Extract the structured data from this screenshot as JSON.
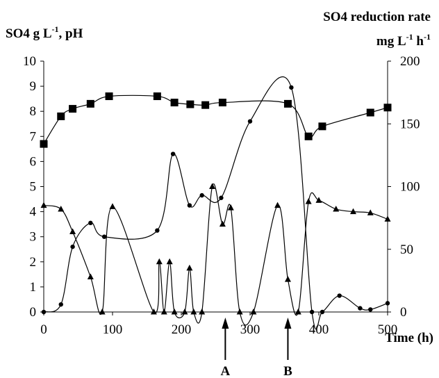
{
  "chart_data": {
    "type": "line",
    "title": "",
    "xlabel": "Time (h)",
    "ylabel_left": {
      "main": "SO4 g L",
      "sup": "-1",
      "tail": ", pH"
    },
    "ylabel_right": {
      "line1": "SO4 reduction rate",
      "line2_a": "mg L",
      "sup_a": "-1",
      "line2_b": " h",
      "sup_b": "-1"
    },
    "xlim": [
      0,
      500
    ],
    "ylim_left": [
      0,
      10
    ],
    "ylim_right": [
      0,
      200
    ],
    "x_ticks": [
      "0",
      "100",
      "200",
      "300",
      "400",
      "500"
    ],
    "y_left_ticks": [
      "0",
      "1",
      "2",
      "3",
      "4",
      "5",
      "6",
      "7",
      "8",
      "9",
      "10"
    ],
    "y_right_ticks": [
      "0",
      "50",
      "100",
      "150",
      "200"
    ],
    "grid": false,
    "annotations": [
      {
        "label": "A",
        "x": 264
      },
      {
        "label": "B",
        "x": 355
      }
    ],
    "series": [
      {
        "marker": "square",
        "axis": "left",
        "x": [
          0,
          25,
          42,
          68,
          95,
          165,
          190,
          213,
          235,
          260,
          355,
          385,
          405,
          475,
          500
        ],
        "y": [
          6.7,
          7.8,
          8.1,
          8.3,
          8.6,
          8.6,
          8.35,
          8.28,
          8.25,
          8.35,
          8.3,
          7.0,
          7.4,
          7.95,
          8.15
        ]
      },
      {
        "marker": "circle",
        "axis": "left",
        "x": [
          0,
          25,
          42,
          68,
          88,
          165,
          188,
          212,
          230,
          258,
          300,
          360,
          390,
          405,
          430,
          460,
          475,
          500
        ],
        "y": [
          0.0,
          0.3,
          2.6,
          3.55,
          3.0,
          3.25,
          6.3,
          4.25,
          4.65,
          4.55,
          7.6,
          8.95,
          0.0,
          0.0,
          0.65,
          0.15,
          0.1,
          0.35
        ]
      },
      {
        "marker": "triangle",
        "axis": "right",
        "x": [
          0,
          25,
          42,
          68,
          85,
          100,
          160,
          168,
          175,
          183,
          190,
          205,
          212,
          218,
          230,
          245,
          260,
          272,
          285,
          305,
          340,
          355,
          370,
          385,
          400,
          425,
          450,
          475,
          500
        ],
        "y": [
          85,
          82,
          64,
          28,
          0,
          84,
          0,
          40,
          0,
          40,
          0,
          0,
          35,
          0,
          0,
          100,
          70,
          83,
          0,
          0,
          85,
          26,
          0,
          88,
          89,
          82,
          80,
          79,
          74
        ]
      }
    ]
  }
}
